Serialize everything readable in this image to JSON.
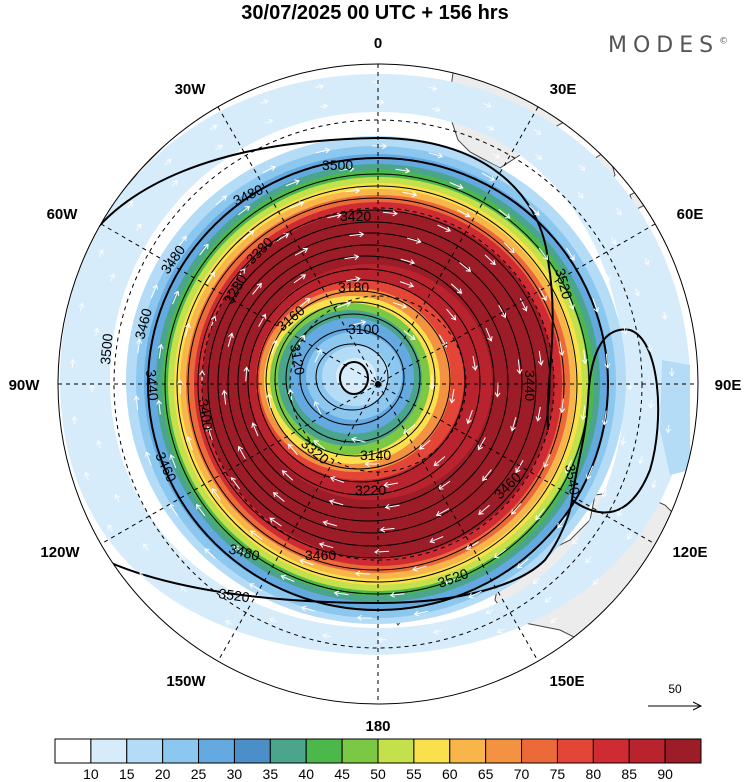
{
  "title": "30/07/2025  00 UTC  + 156 hrs",
  "brand": {
    "text": "MODES",
    "mark": "©"
  },
  "projection": "south-polar-stereographic",
  "longitude_labels": [
    {
      "id": "0",
      "text": "0"
    },
    {
      "id": "30e",
      "text": "30E"
    },
    {
      "id": "60e",
      "text": "60E"
    },
    {
      "id": "90e",
      "text": "90E"
    },
    {
      "id": "120e",
      "text": "120E"
    },
    {
      "id": "150e",
      "text": "150E"
    },
    {
      "id": "180",
      "text": "180"
    },
    {
      "id": "150w",
      "text": "150W"
    },
    {
      "id": "120w",
      "text": "120W"
    },
    {
      "id": "90w",
      "text": "90W"
    },
    {
      "id": "60w",
      "text": "60W"
    },
    {
      "id": "30w",
      "text": "30W"
    }
  ],
  "contour_labels": [
    "3500",
    "3480",
    "3420",
    "3480",
    "3460",
    "3500",
    "3520",
    "3540",
    "3520",
    "3520",
    "3480",
    "3460",
    "3460",
    "3440",
    "3180",
    "3160",
    "3100",
    "3120",
    "3140",
    "3220",
    "3320",
    "3280",
    "3380",
    "3400",
    "3440",
    "3460"
  ],
  "wind_reference": {
    "value": "50"
  },
  "colorbar": {
    "colors": [
      "#ffffff",
      "#d6ecfb",
      "#b4dcf6",
      "#8cc7ef",
      "#64a9df",
      "#4c8ec8",
      "#4aa58c",
      "#4cb84c",
      "#7bc845",
      "#c4e04a",
      "#fbe04e",
      "#f7b54a",
      "#f39241",
      "#ec6a3a",
      "#e34537",
      "#cf2b33",
      "#b8232e",
      "#9c1c27"
    ],
    "tick_labels": [
      "10",
      "15",
      "20",
      "25",
      "30",
      "35",
      "40",
      "45",
      "50",
      "55",
      "60",
      "65",
      "70",
      "75",
      "80",
      "85",
      "90"
    ]
  },
  "colors": {
    "land": "#ececec",
    "coast": "#333333",
    "graticule": "#000000",
    "contour": "#000000",
    "vectors": "#ffffff"
  }
}
